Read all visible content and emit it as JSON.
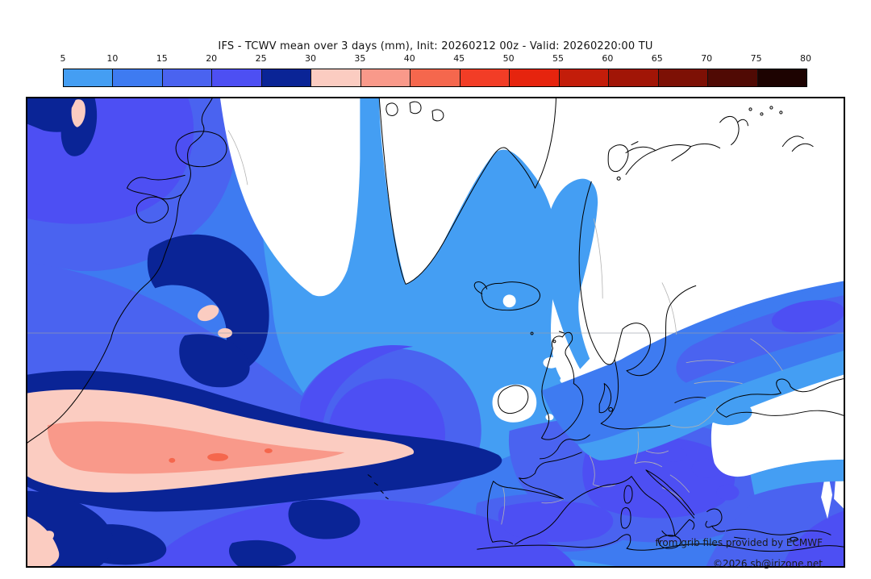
{
  "title": "IFS - TCWV mean over 3 days (mm), Init: 20260212 00z - Valid: 20260220:00 TU",
  "colorbar": {
    "unit": "mm",
    "tick_labels": [
      "5",
      "10",
      "15",
      "20",
      "25",
      "30",
      "35",
      "40",
      "45",
      "50",
      "55",
      "60",
      "65",
      "70",
      "75",
      "80"
    ],
    "segment_colors": [
      "#449EF3",
      "#3E7BF1",
      "#4A63F0",
      "#4D4FF3",
      "#0A2496",
      "#FBCCC1",
      "#F9998A",
      "#F5674D",
      "#F23D26",
      "#E6240E",
      "#C31D0A",
      "#A11506",
      "#7D1005",
      "#500A04",
      "#1D0301"
    ]
  },
  "map": {
    "palette": {
      "below_5_mm": "#FFFFFF",
      "5_10_mm": "#449EF3",
      "10_15_mm": "#3E7BF1",
      "15_20_mm": "#4A63F0",
      "20_25_mm": "#4D4FF3",
      "25_30_mm": "#0A2496",
      "30_35_mm": "#FBCCC1",
      "35_40_mm": "#F9998A",
      "40_45_mm": "#F5674D"
    },
    "attribution_line1": "from grib files provided by ECMWF",
    "attribution_line2": "©2026 sb@irizone.net"
  }
}
